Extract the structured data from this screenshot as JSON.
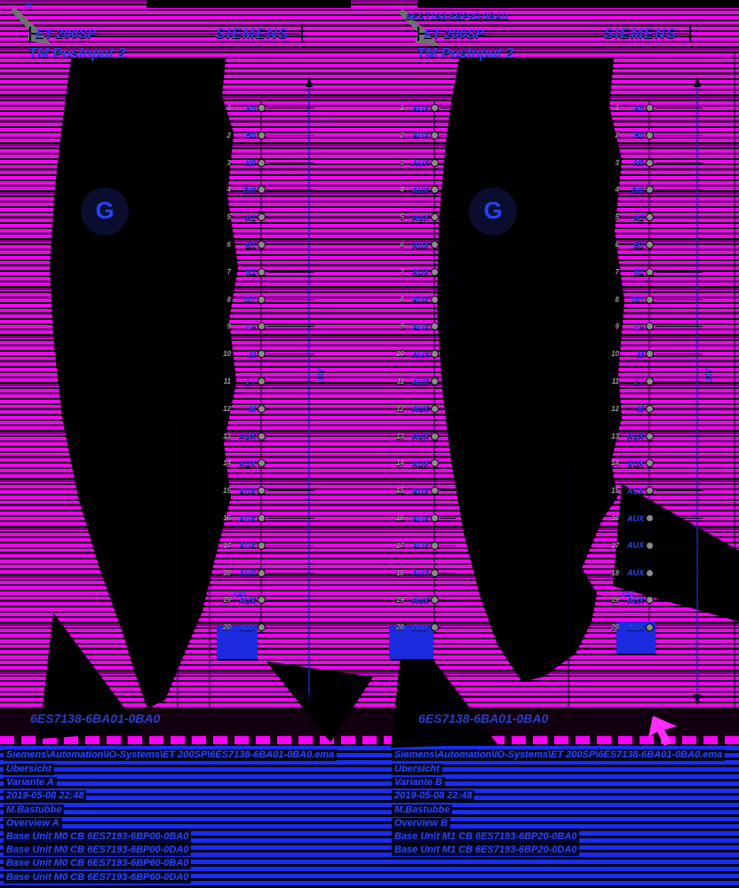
{
  "colors": {
    "background_magenta": "#ff00ff",
    "ink_black": "#000000",
    "annotation_blue": "#2a46ff",
    "title_blue": "#2c3ccc",
    "meta_zone_blue": "#1b2ced",
    "screw_gray": "#8a8a8a"
  },
  "panels": [
    {
      "series": "ET 200SP",
      "product": "TM PosInput 2",
      "brand": "SIEMENS",
      "module_mark": "G",
      "top_label": "15",
      "top_annotation": "",
      "dim_height": "117",
      "dim_total": "141",
      "terminals": [
        {
          "n": "1",
          "label": "A0"
        },
        {
          "n": "2",
          "label": "B0"
        },
        {
          "n": "3",
          "label": "N0"
        },
        {
          "n": "4",
          "label": "DI0"
        },
        {
          "n": "5",
          "label": "A1"
        },
        {
          "n": "6",
          "label": "B1"
        },
        {
          "n": "7",
          "label": "N1"
        },
        {
          "n": "8",
          "label": "DI1"
        },
        {
          "n": "9",
          "label": "L+"
        },
        {
          "n": "10",
          "label": "M"
        },
        {
          "n": "11",
          "label": "L+"
        },
        {
          "n": "12",
          "label": "M"
        },
        {
          "n": "13",
          "label": "AUX"
        },
        {
          "n": "14",
          "label": "AUX"
        },
        {
          "n": "15",
          "label": "AUX"
        },
        {
          "n": "16",
          "label": "AUX"
        },
        {
          "n": "17",
          "label": "AUX"
        },
        {
          "n": "18",
          "label": "AUX"
        },
        {
          "n": "19",
          "label": "AUX"
        },
        {
          "n": "20",
          "label": "AUX"
        }
      ],
      "footer_title": "6ES7138-6BA01-0BA0",
      "meta_path": "Siemens\\Automation\\IO-Systems\\ET 200SP\\6ES7138-6BA01-0BA0.ema",
      "meta_lines": [
        "Übersicht",
        "Variante A",
        "2019-05-08 22:48",
        "M.Bastubbe",
        "Overview A"
      ],
      "base_units": [
        "Base Unit M0 CB 6ES7193-6BP00-0BA0",
        "Base Unit M0 CB 6ES7193-6BP00-0DA0",
        "Base Unit M0 CB 6ES7193-6BP60-0BA0",
        "Base Unit M0 CB 6ES7193-6BP60-0DA0"
      ]
    },
    {
      "series": "ET 200SP",
      "product": "TM PosInput 2",
      "brand": "SIEMENS",
      "module_mark": "G",
      "top_label": "",
      "top_annotation": "6ES7193-6BP20-0BA0",
      "dim_height": "117",
      "dim_total": "141",
      "terminals_left": [
        {
          "n": "1",
          "label": "AUX"
        },
        {
          "n": "2",
          "label": "AUX"
        },
        {
          "n": "3",
          "label": "AUX"
        },
        {
          "n": "4",
          "label": "AUX"
        },
        {
          "n": "5",
          "label": "AUX"
        },
        {
          "n": "6",
          "label": "AUX"
        },
        {
          "n": "7",
          "label": "AUX"
        },
        {
          "n": "8",
          "label": "AUX"
        },
        {
          "n": "9",
          "label": "AUX"
        },
        {
          "n": "10",
          "label": "AUX"
        },
        {
          "n": "11",
          "label": "AUX"
        },
        {
          "n": "12",
          "label": "AUX"
        },
        {
          "n": "13",
          "label": "AUX"
        },
        {
          "n": "14",
          "label": "AUX"
        },
        {
          "n": "15",
          "label": "AUX"
        },
        {
          "n": "16",
          "label": "AUX"
        },
        {
          "n": "17",
          "label": "AUX"
        },
        {
          "n": "18",
          "label": "AUX"
        },
        {
          "n": "19",
          "label": "AUX"
        },
        {
          "n": "20",
          "label": "AUX"
        }
      ],
      "terminals": [
        {
          "n": "1",
          "label": "A0"
        },
        {
          "n": "2",
          "label": "B0"
        },
        {
          "n": "3",
          "label": "N0"
        },
        {
          "n": "4",
          "label": "DI0"
        },
        {
          "n": "5",
          "label": "A1"
        },
        {
          "n": "6",
          "label": "B1"
        },
        {
          "n": "7",
          "label": "N1"
        },
        {
          "n": "8",
          "label": "DI1"
        },
        {
          "n": "9",
          "label": "L+"
        },
        {
          "n": "10",
          "label": "M"
        },
        {
          "n": "11",
          "label": "L+"
        },
        {
          "n": "12",
          "label": "M"
        },
        {
          "n": "13",
          "label": "AUX"
        },
        {
          "n": "14",
          "label": "AUX"
        },
        {
          "n": "15",
          "label": "AUX"
        },
        {
          "n": "16",
          "label": "AUX"
        },
        {
          "n": "17",
          "label": "AUX"
        },
        {
          "n": "18",
          "label": "AUX"
        },
        {
          "n": "19",
          "label": "AUX"
        },
        {
          "n": "20",
          "label": "AUX"
        }
      ],
      "footer_title": "6ES7138-6BA01-0BA0",
      "meta_path": "Siemens\\Automation\\IO-Systems\\ET 200SP\\6ES7138-6BA01-0BA0.ema",
      "meta_lines": [
        "Übersicht",
        "Variante B",
        "2019-05-08 22:48",
        "M.Bastubbe",
        "Overview B"
      ],
      "base_units": [
        "Base Unit M1 CB 6ES7193-6BP20-0BA0",
        "Base Unit M1 CB 6ES7193-6BP20-0DA0"
      ]
    }
  ]
}
